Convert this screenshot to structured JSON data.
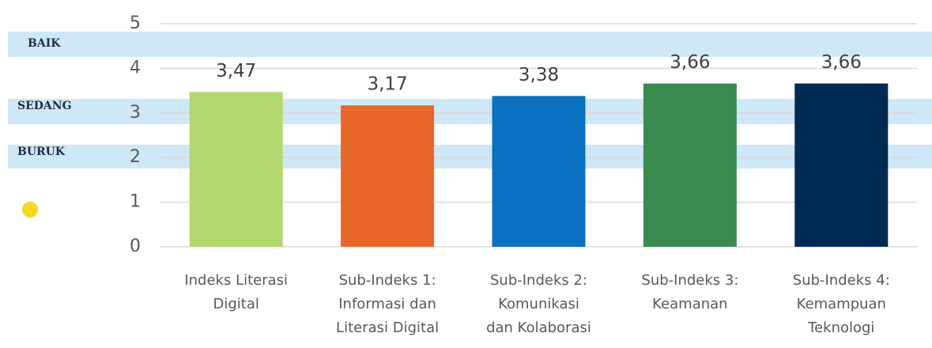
{
  "chart_data": {
    "type": "bar",
    "categories": [
      [
        "Indeks Literasi",
        "Digital"
      ],
      [
        "Sub-Indeks 1:",
        "Informasi dan",
        "Literasi Digital"
      ],
      [
        "Sub-Indeks 2:",
        "Komunikasi",
        "dan Kolaborasi"
      ],
      [
        "Sub-Indeks 3:",
        "Keamanan"
      ],
      [
        "Sub-Indeks 4:",
        "Kemampuan",
        "Teknologi"
      ]
    ],
    "values": [
      3.47,
      3.17,
      3.38,
      3.66,
      3.66
    ],
    "value_labels": [
      "3,47",
      "3,17",
      "3,38",
      "3,66",
      "3,66"
    ],
    "colors": [
      "#b5d76f",
      "#e8672a",
      "#0a70c2",
      "#3b8b51",
      "#002a52"
    ],
    "ylim": [
      0,
      5
    ],
    "yticks": [
      0,
      1,
      2,
      3,
      4,
      5
    ],
    "grid": true,
    "level_labels": [
      "BAIK",
      "SEDANG",
      "BURUK"
    ]
  }
}
